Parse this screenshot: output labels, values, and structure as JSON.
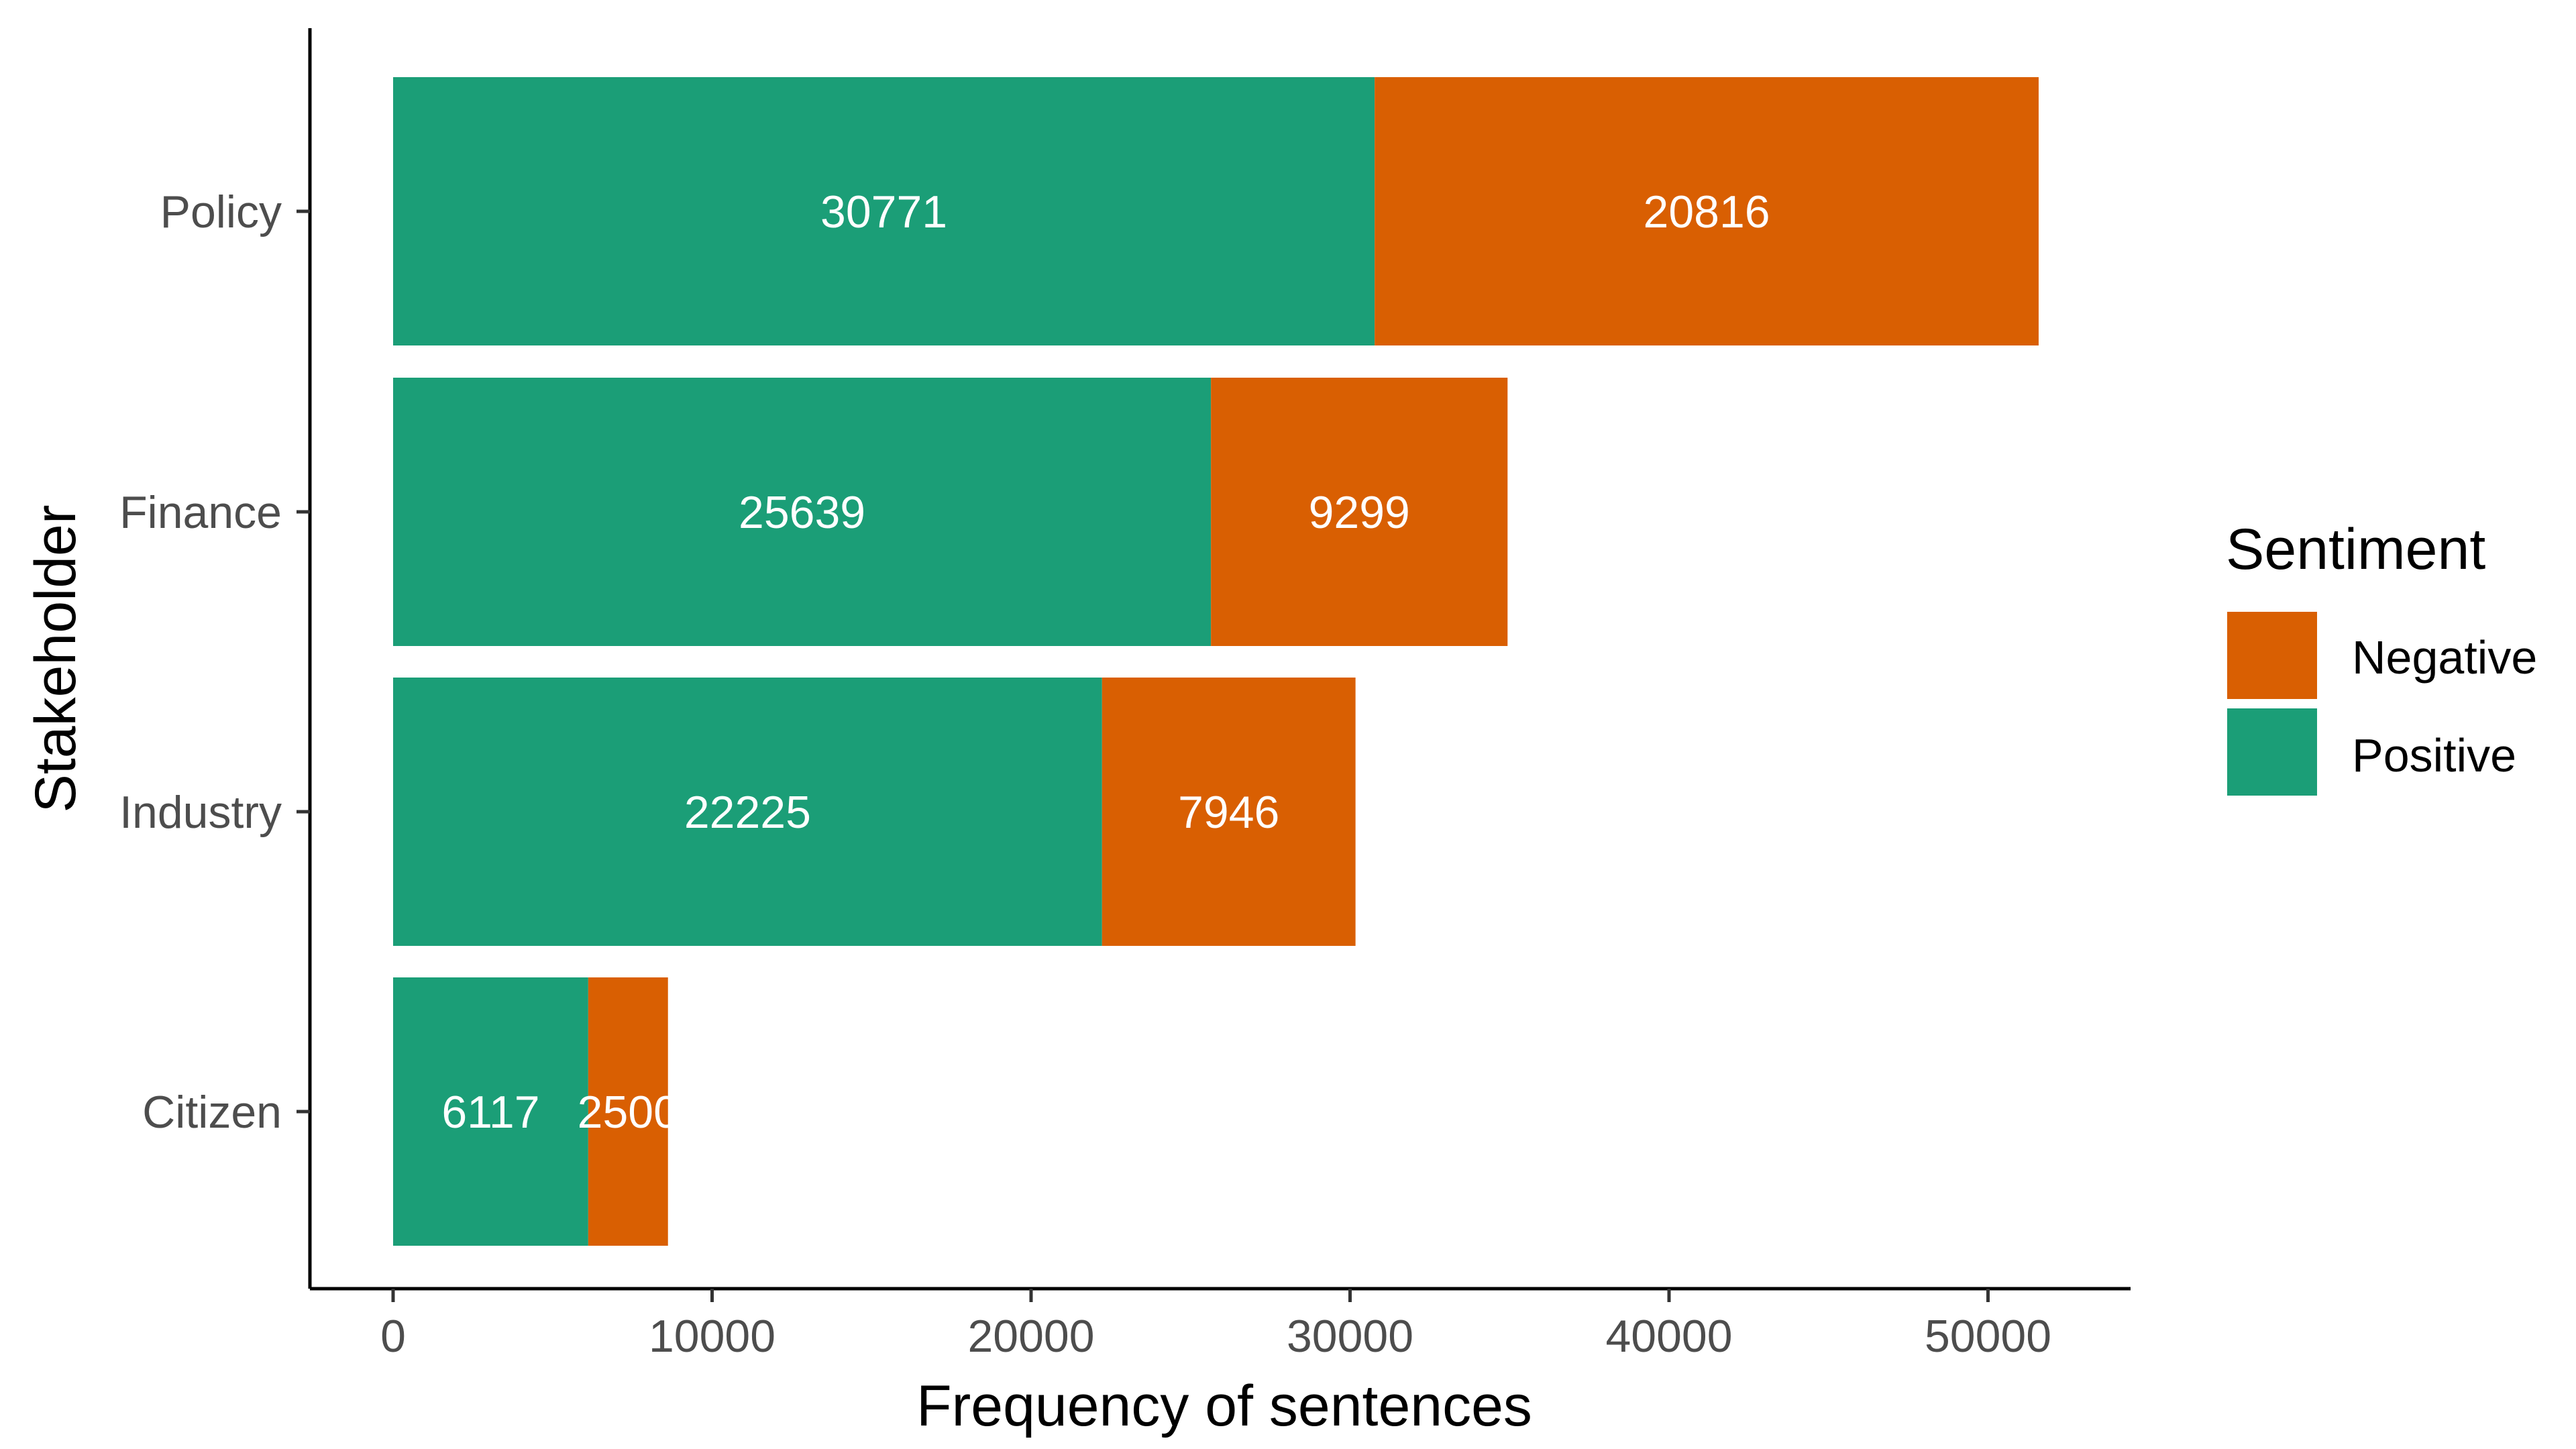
{
  "chart_data": {
    "type": "bar",
    "orientation": "horizontal",
    "stacked": true,
    "categories": [
      "Policy",
      "Finance",
      "Industry",
      "Citizen"
    ],
    "series": [
      {
        "name": "Positive",
        "color": "#1b9e77",
        "values": [
          30771,
          25639,
          22225,
          6117
        ]
      },
      {
        "name": "Negative",
        "color": "#d95f02",
        "values": [
          20816,
          9299,
          7946,
          2500
        ]
      }
    ],
    "xlabel": "Frequency of sentences",
    "ylabel": "Stakeholder",
    "xlim": [
      0,
      54000
    ],
    "xticks": [
      0,
      10000,
      20000,
      30000,
      40000,
      50000
    ],
    "grid": false,
    "legend": {
      "title": "Sentiment",
      "placement": "right",
      "entries": [
        {
          "label": "Negative",
          "color": "#d95f02"
        },
        {
          "label": "Positive",
          "color": "#1b9e77"
        }
      ]
    }
  }
}
